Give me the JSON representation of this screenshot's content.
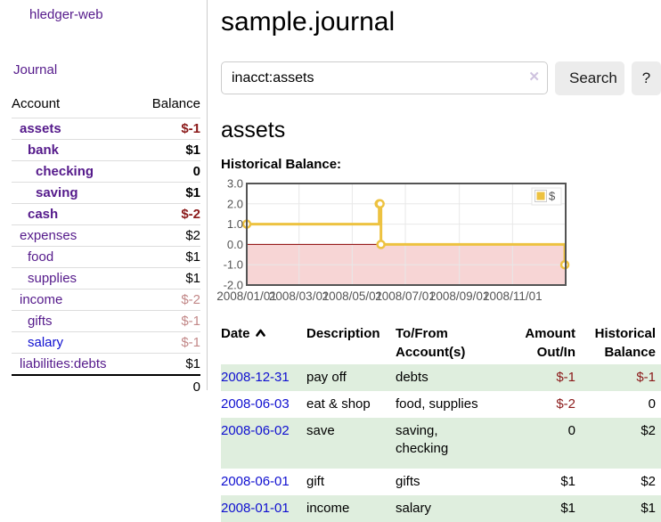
{
  "colors": {
    "link_purple": "#551a8b",
    "link_blue": "#0f0fd0",
    "negative_strong": "#8b1a1a",
    "negative_soft": "#c28888",
    "row_stripe_green": "#dfeede",
    "row_line": "#dddddd",
    "divider": "#cccccc",
    "button_bg": "#ececec",
    "chart_gold": "#edc240",
    "chart_negative_fill": "#f7d5d5",
    "chart_zero_line": "#8b0000",
    "chart_border": "#545454",
    "chart_grid": "#e8e8e8"
  },
  "sidebar": {
    "brand": "hledger-web",
    "journal_link": "Journal",
    "table": {
      "header": {
        "account": "Account",
        "balance": "Balance"
      },
      "accounts": [
        {
          "name": "assets",
          "balance": "$-1",
          "depth": 1,
          "bold": true
        },
        {
          "name": "bank",
          "balance": "$1",
          "depth": 2,
          "bold": true
        },
        {
          "name": "checking",
          "balance": "0",
          "depth": 3,
          "bold": true
        },
        {
          "name": "saving",
          "balance": "$1",
          "depth": 3,
          "bold": true
        },
        {
          "name": "cash",
          "balance": "$-2",
          "depth": 2,
          "bold": true
        },
        {
          "name": "expenses",
          "balance": "$2",
          "depth": 1
        },
        {
          "name": "food",
          "balance": "$1",
          "depth": 2
        },
        {
          "name": "supplies",
          "balance": "$1",
          "depth": 2
        },
        {
          "name": "income",
          "balance": "$-2",
          "depth": 1
        },
        {
          "name": "gifts",
          "balance": "$-1",
          "depth": 2
        },
        {
          "name": "salary",
          "balance": "$-1",
          "depth": 2,
          "link": "blue"
        },
        {
          "name": "liabilities:debts",
          "balance": "$1",
          "depth": 1
        }
      ],
      "total": "0"
    }
  },
  "main": {
    "title": "sample.journal",
    "search": {
      "value": "inacct:assets",
      "clear_icon": "✕",
      "button": "Search",
      "help_button": "?"
    },
    "section_title": "assets",
    "chart_label": "Historical Balance:",
    "register": {
      "headers": [
        "Date",
        "Description",
        "To/From Account(s)",
        "Amount Out/In",
        "Historical Balance"
      ],
      "sort": "ascending",
      "rows": [
        {
          "date": "2008-12-31",
          "description": "pay off",
          "accounts": "debts",
          "amount": "$-1",
          "balance": "$-1"
        },
        {
          "date": "2008-06-03",
          "description": "eat & shop",
          "accounts": "food, supplies",
          "amount": "$-2",
          "balance": "0"
        },
        {
          "date": "2008-06-02",
          "description": "save",
          "accounts": "saving, checking",
          "amount": "0",
          "balance": "$2",
          "tall": true
        },
        {
          "date": "2008-06-01",
          "description": "gift",
          "accounts": "gifts",
          "amount": "$1",
          "balance": "$2"
        },
        {
          "date": "2008-01-01",
          "description": "income",
          "accounts": "salary",
          "amount": "$1",
          "balance": "$1"
        }
      ]
    }
  },
  "chart_data": {
    "type": "line",
    "title": "Historical Balance:",
    "step": true,
    "x_range": [
      "2008-01-01",
      "2009-01-01"
    ],
    "ylim": [
      -2,
      3
    ],
    "y_ticks": [
      3.0,
      2.0,
      1.0,
      0.0,
      -1.0,
      -2.0
    ],
    "x_ticks": [
      {
        "date": "2008-01-01",
        "label": "2008/01/01"
      },
      {
        "date": "2008-03-01",
        "label": "2008/03/01"
      },
      {
        "date": "2008-05-01",
        "label": "2008/05/01"
      },
      {
        "date": "2008-07-01",
        "label": "2008/07/01"
      },
      {
        "date": "2008-09-01",
        "label": "2008/09/01"
      },
      {
        "date": "2008-11-01",
        "label": "2008/11/01"
      }
    ],
    "series": [
      {
        "name": "$",
        "color": "#edc240",
        "points": [
          {
            "date": "2008-01-01",
            "value": 1
          },
          {
            "date": "2008-06-01",
            "value": 2
          },
          {
            "date": "2008-06-02",
            "value": 2
          },
          {
            "date": "2008-06-03",
            "value": 0
          },
          {
            "date": "2008-12-31",
            "value": -1
          }
        ]
      }
    ],
    "legend": {
      "label": "$",
      "position": "top-right"
    },
    "negative_region_fill": "#f7d5d5",
    "zero_line_color": "#8b0000",
    "grid": true
  }
}
